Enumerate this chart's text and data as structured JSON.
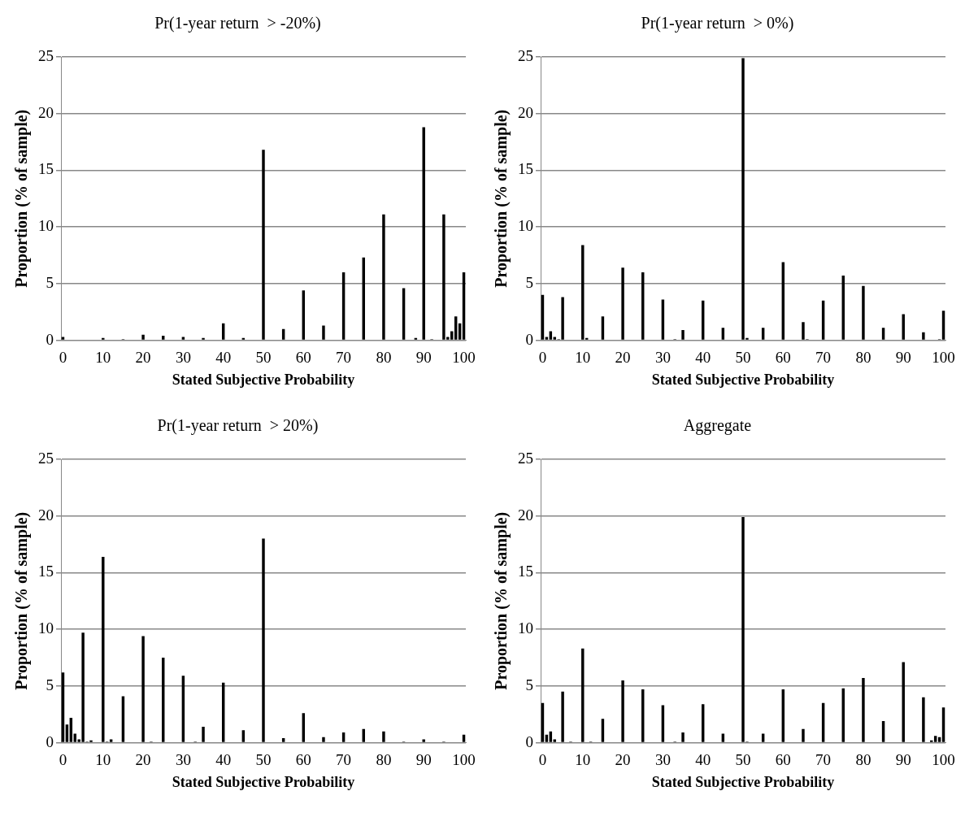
{
  "chart_data": [
    {
      "type": "bar",
      "title": "Pr(1-year return  > -20%)",
      "xlabel": "Stated Subjective Probability",
      "ylabel": "Proportion (% of sample)",
      "categories": [
        "0",
        null,
        null,
        null,
        null,
        null,
        null,
        null,
        null,
        null,
        "10",
        null,
        null,
        null,
        null,
        null,
        null,
        null,
        null,
        null,
        "20",
        null,
        null,
        null,
        null,
        null,
        null,
        null,
        null,
        null,
        "30",
        null,
        null,
        null,
        null,
        null,
        null,
        null,
        null,
        null,
        "40",
        null,
        null,
        null,
        null,
        null,
        null,
        null,
        null,
        null,
        "50",
        null,
        null,
        null,
        null,
        null,
        null,
        null,
        null,
        null,
        "60",
        null,
        null,
        null,
        null,
        null,
        null,
        null,
        null,
        null,
        "70",
        null,
        null,
        null,
        null,
        null,
        null,
        null,
        null,
        null,
        "80",
        null,
        null,
        null,
        null,
        null,
        null,
        null,
        null,
        null,
        "90",
        null,
        null,
        null,
        null,
        null,
        null,
        null,
        null,
        null,
        "100"
      ],
      "color": "#000000",
      "ylim": [
        0,
        25
      ],
      "yticks": [
        0,
        5,
        10,
        15,
        20,
        25
      ],
      "grid": "y",
      "values": [
        0.3,
        0,
        0,
        0,
        0,
        0,
        0,
        0,
        0,
        0,
        0.2,
        0,
        0,
        0,
        0,
        0.1,
        0,
        0,
        0,
        0,
        0.5,
        0,
        0,
        0,
        0,
        0.4,
        0,
        0,
        0,
        0,
        0.3,
        0,
        0,
        0,
        0,
        0.2,
        0,
        0,
        0,
        0,
        1.5,
        0,
        0,
        0,
        0,
        0.2,
        0,
        0,
        0,
        0,
        16.8,
        0,
        0,
        0,
        0,
        1.0,
        0,
        0,
        0,
        0,
        4.4,
        0,
        0,
        0,
        0,
        1.3,
        0,
        0,
        0,
        0,
        6.0,
        0,
        0,
        0,
        0,
        7.3,
        0,
        0,
        0,
        0,
        11.1,
        0,
        0,
        0,
        0,
        4.6,
        0,
        0,
        0.2,
        0,
        18.8,
        0,
        0.1,
        0,
        0,
        11.1,
        0.3,
        0.8,
        2.1,
        1.5,
        6.0
      ]
    },
    {
      "type": "bar",
      "title": "Pr(1-year return  > 0%)",
      "xlabel": "Stated Subjective Probability",
      "ylabel": "Proportion (% of sample)",
      "categories": [
        "0",
        null,
        null,
        null,
        null,
        null,
        null,
        null,
        null,
        null,
        "10",
        null,
        null,
        null,
        null,
        null,
        null,
        null,
        null,
        null,
        "20",
        null,
        null,
        null,
        null,
        null,
        null,
        null,
        null,
        null,
        "30",
        null,
        null,
        null,
        null,
        null,
        null,
        null,
        null,
        null,
        "40",
        null,
        null,
        null,
        null,
        null,
        null,
        null,
        null,
        null,
        "50",
        null,
        null,
        null,
        null,
        null,
        null,
        null,
        null,
        null,
        "60",
        null,
        null,
        null,
        null,
        null,
        null,
        null,
        null,
        null,
        "70",
        null,
        null,
        null,
        null,
        null,
        null,
        null,
        null,
        null,
        "80",
        null,
        null,
        null,
        null,
        null,
        null,
        null,
        null,
        null,
        "90",
        null,
        null,
        null,
        null,
        null,
        null,
        null,
        null,
        null,
        "100"
      ],
      "color": "#000000",
      "ylim": [
        0,
        25
      ],
      "yticks": [
        0,
        5,
        10,
        15,
        20,
        25
      ],
      "grid": "y",
      "values": [
        4.0,
        0.3,
        0.8,
        0.3,
        0.1,
        3.8,
        0,
        0,
        0,
        0,
        8.4,
        0.2,
        0,
        0,
        0,
        2.1,
        0,
        0,
        0,
        0,
        6.4,
        0,
        0,
        0,
        0,
        6.0,
        0,
        0,
        0,
        0,
        3.6,
        0,
        0,
        0.1,
        0,
        0.9,
        0,
        0,
        0,
        0,
        3.5,
        0,
        0,
        0,
        0,
        1.1,
        0,
        0,
        0,
        0,
        24.9,
        0.2,
        0,
        0,
        0,
        1.1,
        0,
        0,
        0,
        0,
        6.9,
        0,
        0,
        0,
        0,
        1.6,
        0.1,
        0,
        0,
        0,
        3.5,
        0,
        0,
        0,
        0,
        5.7,
        0,
        0,
        0,
        0,
        4.8,
        0,
        0,
        0,
        0,
        1.1,
        0,
        0,
        0,
        0,
        2.3,
        0,
        0,
        0,
        0,
        0.7,
        0,
        0,
        0,
        0.1,
        2.6
      ]
    },
    {
      "type": "bar",
      "title": "Pr(1-year return  > 20%)",
      "xlabel": "Stated Subjective Probability",
      "ylabel": "Proportion (% of sample)",
      "categories": [
        "0",
        null,
        null,
        null,
        null,
        null,
        null,
        null,
        null,
        null,
        "10",
        null,
        null,
        null,
        null,
        null,
        null,
        null,
        null,
        null,
        "20",
        null,
        null,
        null,
        null,
        null,
        null,
        null,
        null,
        null,
        "30",
        null,
        null,
        null,
        null,
        null,
        null,
        null,
        null,
        null,
        "40",
        null,
        null,
        null,
        null,
        null,
        null,
        null,
        null,
        null,
        "50",
        null,
        null,
        null,
        null,
        null,
        null,
        null,
        null,
        null,
        "60",
        null,
        null,
        null,
        null,
        null,
        null,
        null,
        null,
        null,
        "70",
        null,
        null,
        null,
        null,
        null,
        null,
        null,
        null,
        null,
        "80",
        null,
        null,
        null,
        null,
        null,
        null,
        null,
        null,
        null,
        "90",
        null,
        null,
        null,
        null,
        null,
        null,
        null,
        null,
        null,
        "100"
      ],
      "color": "#000000",
      "ylim": [
        0,
        25
      ],
      "yticks": [
        0,
        5,
        10,
        15,
        20,
        25
      ],
      "grid": "y",
      "values": [
        6.2,
        1.6,
        2.2,
        0.8,
        0.3,
        9.7,
        0.1,
        0.2,
        0,
        0,
        16.4,
        0.1,
        0.3,
        0,
        0,
        4.1,
        0,
        0,
        0,
        0,
        9.4,
        0,
        0.1,
        0,
        0,
        7.5,
        0,
        0,
        0,
        0,
        5.9,
        0,
        0,
        0.1,
        0,
        1.4,
        0,
        0,
        0,
        0,
        5.3,
        0,
        0,
        0,
        0,
        1.1,
        0,
        0,
        0,
        0,
        18.0,
        0,
        0,
        0,
        0,
        0.4,
        0,
        0,
        0,
        0,
        2.6,
        0,
        0,
        0,
        0,
        0.5,
        0,
        0,
        0,
        0,
        0.9,
        0,
        0,
        0,
        0,
        1.2,
        0,
        0,
        0,
        0,
        1.0,
        0,
        0,
        0,
        0,
        0.1,
        0,
        0,
        0,
        0,
        0.3,
        0,
        0,
        0,
        0,
        0.1,
        0,
        0,
        0,
        0,
        0.7
      ]
    },
    {
      "type": "bar",
      "title": "Aggregate",
      "xlabel": "Stated Subjective Probability",
      "ylabel": "Proportion (% of sample)",
      "categories": [
        "0",
        null,
        null,
        null,
        null,
        null,
        null,
        null,
        null,
        null,
        "10",
        null,
        null,
        null,
        null,
        null,
        null,
        null,
        null,
        null,
        "20",
        null,
        null,
        null,
        null,
        null,
        null,
        null,
        null,
        null,
        "30",
        null,
        null,
        null,
        null,
        null,
        null,
        null,
        null,
        null,
        "40",
        null,
        null,
        null,
        null,
        null,
        null,
        null,
        null,
        null,
        "50",
        null,
        null,
        null,
        null,
        null,
        null,
        null,
        null,
        null,
        "60",
        null,
        null,
        null,
        null,
        null,
        null,
        null,
        null,
        null,
        "70",
        null,
        null,
        null,
        null,
        null,
        null,
        null,
        null,
        null,
        "80",
        null,
        null,
        null,
        null,
        null,
        null,
        null,
        null,
        null,
        "90",
        null,
        null,
        null,
        null,
        null,
        null,
        null,
        null,
        null,
        "100"
      ],
      "color": "#000000",
      "ylim": [
        0,
        25
      ],
      "yticks": [
        0,
        5,
        10,
        15,
        20,
        25
      ],
      "grid": "y",
      "values": [
        3.5,
        0.7,
        1.0,
        0.3,
        0,
        4.5,
        0,
        0.1,
        0,
        0,
        8.3,
        0,
        0.1,
        0,
        0,
        2.1,
        0,
        0,
        0,
        0,
        5.5,
        0,
        0,
        0,
        0,
        4.7,
        0,
        0,
        0,
        0,
        3.3,
        0,
        0,
        0.1,
        0,
        0.9,
        0,
        0,
        0,
        0,
        3.4,
        0,
        0,
        0,
        0,
        0.8,
        0,
        0,
        0,
        0,
        19.9,
        0.1,
        0,
        0,
        0,
        0.8,
        0,
        0,
        0,
        0,
        4.7,
        0,
        0,
        0,
        0,
        1.2,
        0,
        0,
        0,
        0,
        3.5,
        0,
        0,
        0,
        0,
        4.8,
        0,
        0,
        0,
        0,
        5.7,
        0,
        0,
        0,
        0,
        1.9,
        0,
        0,
        0,
        0,
        7.1,
        0,
        0,
        0,
        0,
        4.0,
        0,
        0.2,
        0.6,
        0.5,
        3.1
      ]
    }
  ]
}
